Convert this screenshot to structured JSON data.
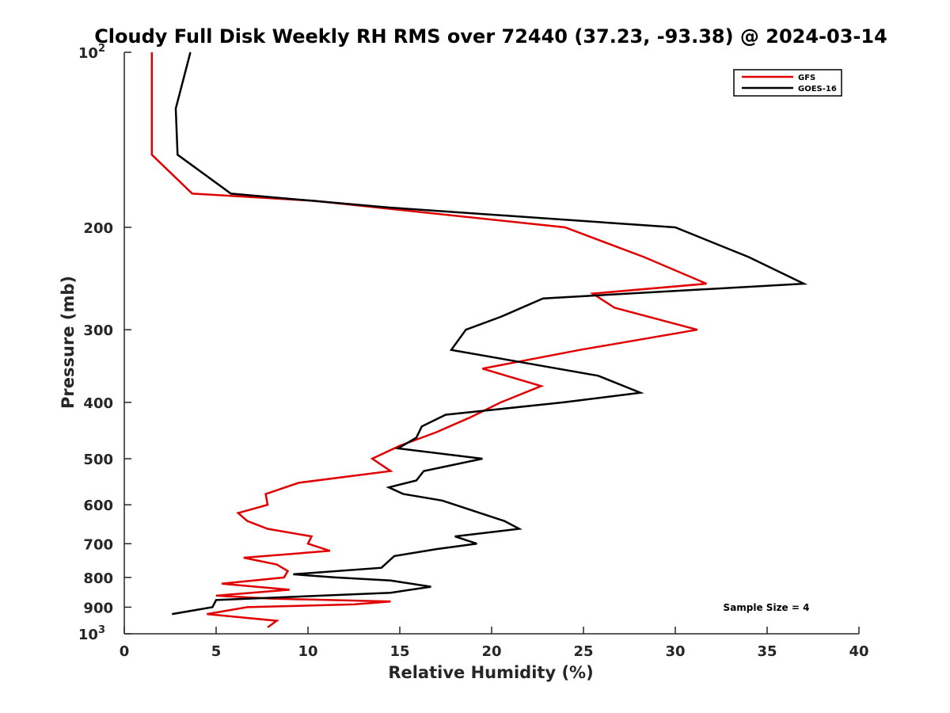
{
  "chart_data": {
    "type": "line",
    "title": "Cloudy Full Disk Weekly RH RMS over 72440 (37.23, -93.38) @ 2024-03-14",
    "xlabel": "Relative Humidity (%)",
    "ylabel": "Pressure (mb)",
    "xlim": [
      0,
      40
    ],
    "ylim": [
      100,
      1000
    ],
    "y_scale": "log",
    "y_reversed": true,
    "x_ticks": [
      "0",
      "5",
      "10",
      "15",
      "20",
      "25",
      "30",
      "35",
      "40"
    ],
    "y_ticks": [
      {
        "value": 100,
        "label": "10",
        "sup": "2"
      },
      {
        "value": 200,
        "label": "200",
        "sup": ""
      },
      {
        "value": 300,
        "label": "300",
        "sup": ""
      },
      {
        "value": 400,
        "label": "400",
        "sup": ""
      },
      {
        "value": 500,
        "label": "500",
        "sup": ""
      },
      {
        "value": 600,
        "label": "600",
        "sup": ""
      },
      {
        "value": 700,
        "label": "700",
        "sup": ""
      },
      {
        "value": 800,
        "label": "800",
        "sup": ""
      },
      {
        "value": 900,
        "label": "900",
        "sup": ""
      },
      {
        "value": 1000,
        "label": "10",
        "sup": "3"
      }
    ],
    "legend_position": "top-right",
    "annotation": "Sample Size = 4",
    "series": [
      {
        "name": "GFS",
        "color": "#e00000",
        "points": [
          [
            1.5,
            100
          ],
          [
            1.5,
            125
          ],
          [
            1.5,
            150
          ],
          [
            3.7,
            175
          ],
          [
            10.3,
            180
          ],
          [
            24.0,
            200
          ],
          [
            28.3,
            225
          ],
          [
            31.7,
            250
          ],
          [
            25.5,
            260
          ],
          [
            26.7,
            275
          ],
          [
            31.2,
            300
          ],
          [
            24.8,
            325
          ],
          [
            19.5,
            350
          ],
          [
            22.7,
            375
          ],
          [
            20.5,
            400
          ],
          [
            18.8,
            425
          ],
          [
            17.0,
            450
          ],
          [
            15.0,
            475
          ],
          [
            13.5,
            500
          ],
          [
            14.5,
            525
          ],
          [
            9.5,
            550
          ],
          [
            7.7,
            575
          ],
          [
            7.8,
            600
          ],
          [
            6.2,
            620
          ],
          [
            6.7,
            640
          ],
          [
            7.8,
            660
          ],
          [
            10.2,
            680
          ],
          [
            10.0,
            700
          ],
          [
            11.2,
            720
          ],
          [
            6.5,
            740
          ],
          [
            8.3,
            760
          ],
          [
            8.9,
            780
          ],
          [
            8.7,
            800
          ],
          [
            5.3,
            820
          ],
          [
            9.0,
            840
          ],
          [
            5.0,
            860
          ],
          [
            8.0,
            870
          ],
          [
            14.5,
            880
          ],
          [
            12.5,
            890
          ],
          [
            6.7,
            900
          ],
          [
            4.5,
            925
          ],
          [
            8.3,
            950
          ],
          [
            7.8,
            975
          ]
        ]
      },
      {
        "name": "GOES-16",
        "color": "#000000",
        "points": [
          [
            3.6,
            100
          ],
          [
            2.8,
            125
          ],
          [
            2.9,
            150
          ],
          [
            5.8,
            175
          ],
          [
            14.5,
            185
          ],
          [
            30.0,
            200
          ],
          [
            34.0,
            225
          ],
          [
            37.0,
            250
          ],
          [
            22.8,
            265
          ],
          [
            20.5,
            285
          ],
          [
            18.6,
            300
          ],
          [
            17.8,
            325
          ],
          [
            25.8,
            360
          ],
          [
            28.1,
            385
          ],
          [
            23.9,
            400
          ],
          [
            17.5,
            420
          ],
          [
            16.2,
            440
          ],
          [
            15.9,
            460
          ],
          [
            14.9,
            480
          ],
          [
            19.5,
            500
          ],
          [
            16.3,
            525
          ],
          [
            15.9,
            545
          ],
          [
            14.4,
            560
          ],
          [
            15.2,
            575
          ],
          [
            17.3,
            590
          ],
          [
            18.7,
            610
          ],
          [
            20.7,
            640
          ],
          [
            21.5,
            660
          ],
          [
            18.0,
            680
          ],
          [
            19.2,
            700
          ],
          [
            17.0,
            715
          ],
          [
            14.7,
            735
          ],
          [
            14.0,
            770
          ],
          [
            9.2,
            790
          ],
          [
            11.5,
            800
          ],
          [
            14.5,
            810
          ],
          [
            16.7,
            830
          ],
          [
            14.5,
            850
          ],
          [
            5.0,
            875
          ],
          [
            4.8,
            900
          ],
          [
            2.6,
            925
          ]
        ]
      }
    ]
  }
}
